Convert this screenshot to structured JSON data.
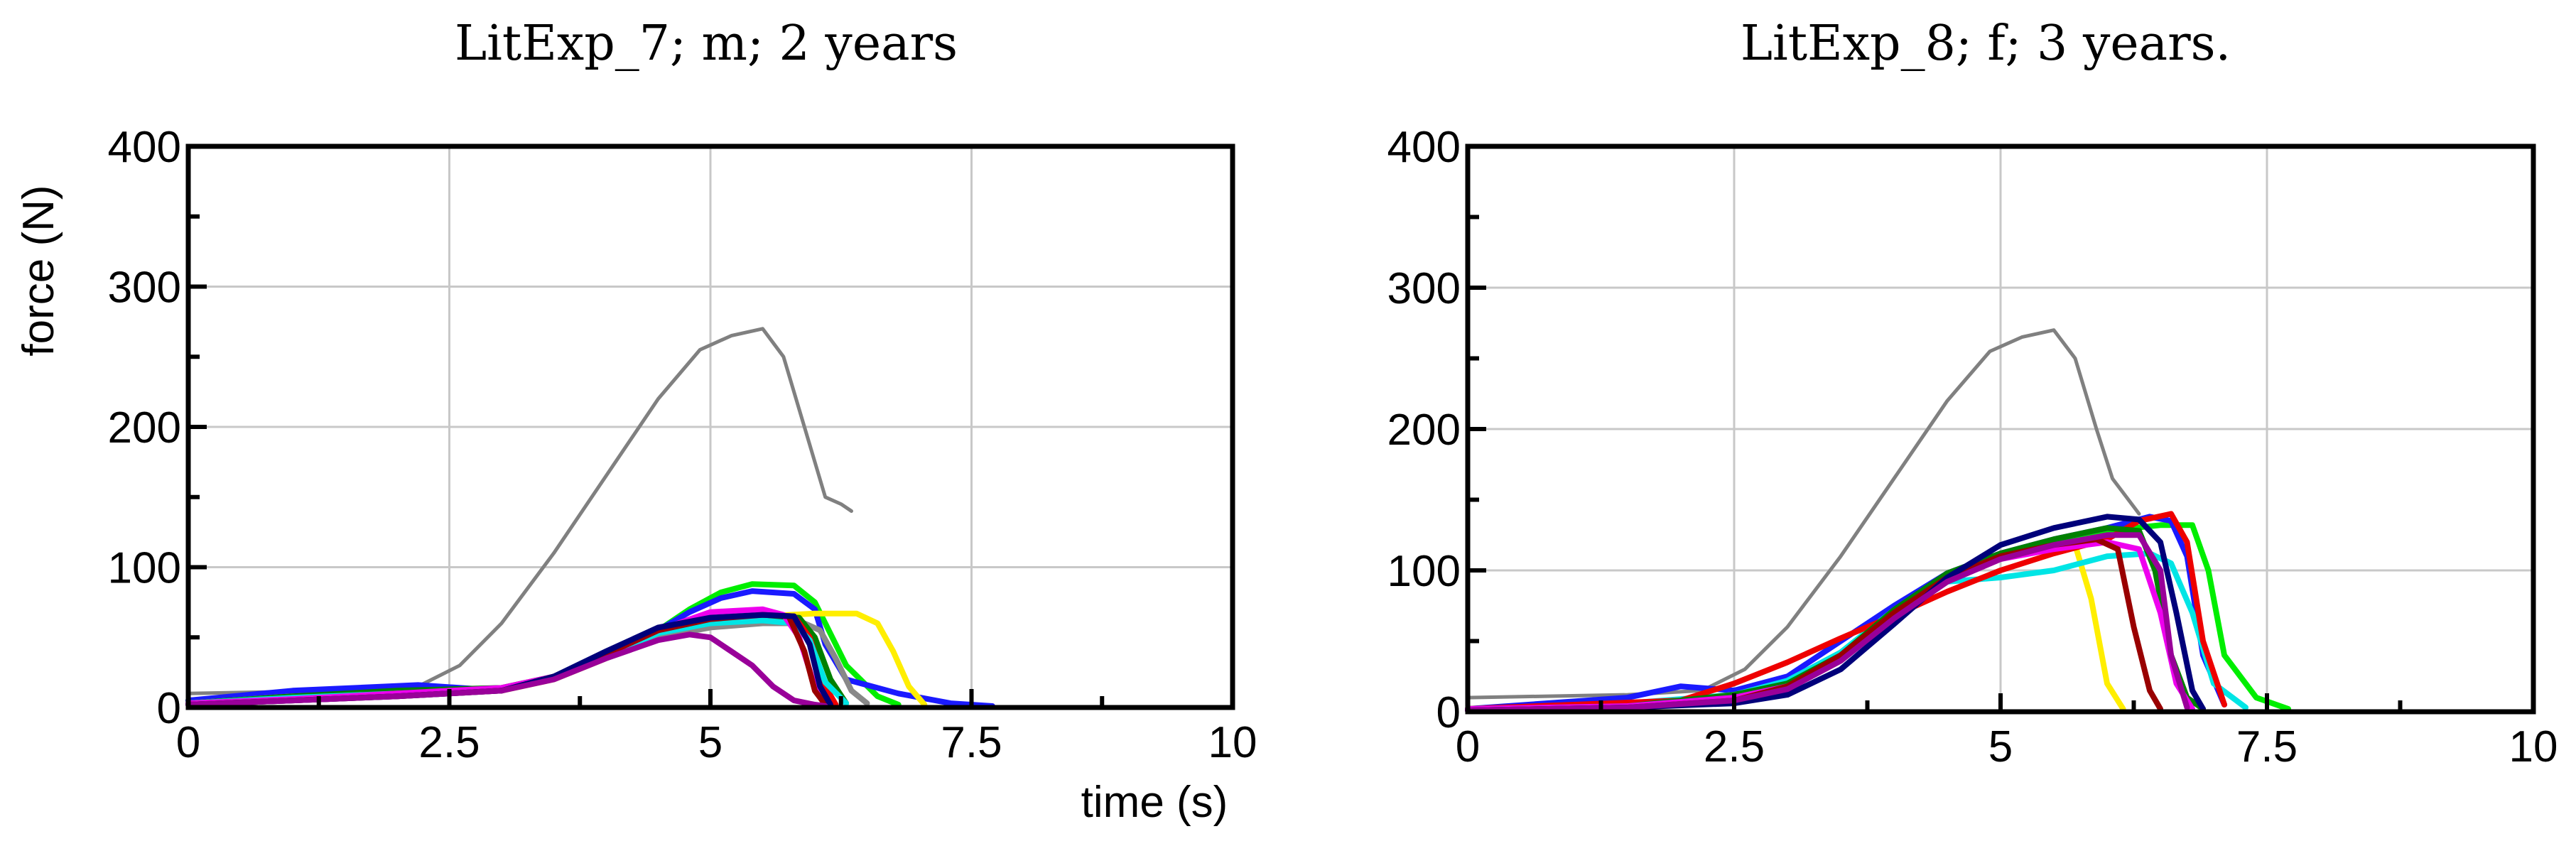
{
  "chart_data": [
    {
      "type": "line",
      "title": "LitExp_7; m; 2 years",
      "xlabel": "time (s)",
      "ylabel": "force (N)",
      "xlim": [
        0,
        10
      ],
      "ylim": [
        0,
        400
      ],
      "x_ticks": [
        0,
        2.5,
        5,
        7.5,
        10
      ],
      "x_tick_labels": [
        "0",
        "2.5",
        "5",
        "7.5",
        "10"
      ],
      "y_ticks": [
        0,
        100,
        200,
        300,
        400
      ],
      "y_tick_labels": [
        "0",
        "100",
        "200",
        "300",
        "400"
      ],
      "grid": true,
      "series": [
        {
          "color": "#808080",
          "thin": true,
          "x": [
            0,
            1.5,
            2.2,
            2.6,
            3.0,
            3.5,
            4.0,
            4.5,
            4.9,
            5.2,
            5.5,
            5.7,
            5.9,
            6.1,
            6.25,
            6.35
          ],
          "y": [
            10,
            12,
            15,
            30,
            60,
            110,
            165,
            220,
            255,
            265,
            270,
            250,
            200,
            150,
            145,
            140
          ]
        },
        {
          "color": "#00ee00",
          "x": [
            0,
            1,
            2,
            3,
            3.5,
            4,
            4.5,
            4.8,
            5.1,
            5.4,
            5.8,
            6.0,
            6.1,
            6.3,
            6.6,
            6.8
          ],
          "y": [
            5,
            10,
            14,
            12,
            22,
            38,
            55,
            70,
            82,
            88,
            87,
            75,
            60,
            30,
            8,
            2
          ]
        },
        {
          "color": "#1a1aff",
          "x": [
            0,
            1,
            2.2,
            3,
            3.5,
            4,
            4.5,
            4.8,
            5.1,
            5.4,
            5.8,
            6.0,
            6.1,
            6.3,
            6.8,
            7.3,
            7.7
          ],
          "y": [
            5,
            12,
            16,
            12,
            22,
            38,
            55,
            68,
            78,
            83,
            81,
            70,
            45,
            20,
            10,
            3,
            1
          ]
        },
        {
          "color": "#ffee00",
          "x": [
            0,
            1,
            2,
            3,
            3.5,
            4,
            4.5,
            5,
            5.5,
            6.0,
            6.4,
            6.6,
            6.75,
            6.9,
            7.05
          ],
          "y": [
            3,
            8,
            10,
            12,
            20,
            35,
            52,
            60,
            65,
            67,
            67,
            60,
            40,
            15,
            2
          ]
        },
        {
          "color": "#888888",
          "x": [
            0,
            1,
            2,
            3,
            3.5,
            4,
            4.5,
            5,
            5.5,
            5.9,
            6.05,
            6.2,
            6.35,
            6.5
          ],
          "y": [
            3,
            8,
            11,
            14,
            22,
            36,
            50,
            57,
            60,
            60,
            55,
            35,
            12,
            3
          ]
        },
        {
          "color": "#008000",
          "x": [
            0,
            1,
            2,
            3,
            3.5,
            4,
            4.5,
            5,
            5.5,
            5.85,
            6.0,
            6.15,
            6.3
          ],
          "y": [
            3,
            8,
            12,
            14,
            22,
            38,
            55,
            62,
            65,
            64,
            50,
            20,
            3
          ]
        },
        {
          "color": "#ee0000",
          "x": [
            0,
            1,
            2,
            3,
            3.5,
            4,
            4.5,
            5,
            5.5,
            5.8,
            5.95,
            6.1,
            6.2
          ],
          "y": [
            3,
            6,
            10,
            12,
            22,
            38,
            55,
            62,
            66,
            65,
            50,
            15,
            2
          ]
        },
        {
          "color": "#00e5e5",
          "x": [
            0,
            1,
            2,
            3,
            3.5,
            4,
            4.5,
            5,
            5.5,
            5.8,
            5.95,
            6.1,
            6.3
          ],
          "y": [
            3,
            7,
            10,
            13,
            22,
            37,
            53,
            60,
            62,
            60,
            48,
            18,
            3
          ]
        },
        {
          "color": "#ee00ee",
          "x": [
            0,
            1,
            2,
            3,
            3.5,
            4,
            4.5,
            5,
            5.5,
            5.7,
            5.85,
            6.0,
            6.1
          ],
          "y": [
            3,
            6,
            10,
            14,
            22,
            38,
            55,
            68,
            70,
            66,
            50,
            15,
            2
          ]
        },
        {
          "color": "#990000",
          "x": [
            0,
            1,
            2,
            3,
            3.5,
            4,
            4.5,
            5,
            5.5,
            5.75,
            5.9,
            6.0,
            6.1
          ],
          "y": [
            2,
            5,
            8,
            12,
            22,
            38,
            55,
            63,
            66,
            65,
            40,
            12,
            2
          ]
        },
        {
          "color": "#00007a",
          "x": [
            0,
            1,
            2,
            3,
            3.5,
            4,
            4.5,
            5,
            5.5,
            5.8,
            5.95,
            6.05,
            6.15
          ],
          "y": [
            2,
            5,
            8,
            12,
            22,
            40,
            57,
            64,
            66,
            65,
            45,
            15,
            2
          ]
        },
        {
          "color": "#990099",
          "x": [
            0,
            1,
            2,
            3,
            3.5,
            4,
            4.5,
            4.8,
            5.0,
            5.2,
            5.4,
            5.6,
            5.8,
            6.0,
            6.1
          ],
          "y": [
            2,
            5,
            8,
            12,
            20,
            35,
            48,
            52,
            50,
            40,
            30,
            15,
            5,
            2,
            1
          ]
        }
      ]
    },
    {
      "type": "line",
      "title": "LitExp_8; f; 3 years.",
      "xlabel": "",
      "ylabel": "",
      "xlim": [
        0,
        10
      ],
      "ylim": [
        0,
        400
      ],
      "x_ticks": [
        0,
        2.5,
        5,
        7.5,
        10
      ],
      "x_tick_labels": [
        "0",
        "2.5",
        "5",
        "7.5",
        "10"
      ],
      "y_ticks": [
        0,
        100,
        200,
        300,
        400
      ],
      "y_tick_labels": [
        "0",
        "100",
        "200",
        "300",
        "400"
      ],
      "grid": true,
      "series": [
        {
          "color": "#808080",
          "thin": true,
          "x": [
            0,
            1.5,
            2.2,
            2.6,
            3.0,
            3.5,
            4.0,
            4.5,
            4.9,
            5.2,
            5.5,
            5.7,
            5.9,
            6.05,
            6.2,
            6.3
          ],
          "y": [
            10,
            12,
            15,
            30,
            60,
            110,
            165,
            220,
            255,
            265,
            270,
            250,
            200,
            165,
            150,
            140
          ]
        },
        {
          "color": "#00ee00",
          "x": [
            0,
            1.5,
            2.5,
            3,
            3.5,
            4,
            4.5,
            5,
            5.5,
            6,
            6.5,
            6.8,
            6.95,
            7.1,
            7.4,
            7.7
          ],
          "y": [
            2,
            5,
            10,
            20,
            40,
            70,
            95,
            110,
            120,
            128,
            132,
            132,
            100,
            40,
            10,
            2
          ]
        },
        {
          "color": "#1a1aff",
          "x": [
            0,
            1.5,
            2.0,
            2.5,
            3,
            3.5,
            4,
            4.5,
            5,
            5.5,
            6,
            6.4,
            6.6,
            6.75,
            6.9,
            7.1
          ],
          "y": [
            2,
            10,
            18,
            15,
            25,
            50,
            75,
            98,
            112,
            122,
            130,
            138,
            135,
            110,
            40,
            5
          ]
        },
        {
          "color": "#ffee00",
          "x": [
            0,
            1.5,
            2.5,
            3,
            3.5,
            4,
            4.5,
            5,
            5.4,
            5.7,
            5.85,
            6.0,
            6.15
          ],
          "y": [
            2,
            5,
            12,
            20,
            40,
            70,
            95,
            110,
            118,
            118,
            80,
            20,
            2
          ]
        },
        {
          "color": "#00e5e5",
          "x": [
            0,
            1.5,
            2.5,
            3,
            3.5,
            4,
            4.5,
            5,
            5.5,
            6,
            6.4,
            6.6,
            6.8,
            7.0,
            7.3
          ],
          "y": [
            2,
            6,
            12,
            22,
            42,
            72,
            92,
            95,
            100,
            110,
            112,
            105,
            70,
            20,
            3
          ]
        },
        {
          "color": "#ee0000",
          "x": [
            0,
            1,
            2,
            2.5,
            3,
            3.5,
            4,
            4.5,
            5,
            5.5,
            6,
            6.3,
            6.6,
            6.75,
            6.9,
            7.1
          ],
          "y": [
            2,
            5,
            8,
            20,
            35,
            52,
            68,
            85,
            100,
            112,
            122,
            135,
            140,
            120,
            50,
            5
          ]
        },
        {
          "color": "#008000",
          "x": [
            0,
            1.5,
            2.5,
            3,
            3.5,
            4,
            4.5,
            5,
            5.5,
            6,
            6.3,
            6.45,
            6.6,
            6.75,
            6.9
          ],
          "y": [
            2,
            4,
            12,
            20,
            40,
            72,
            98,
            112,
            122,
            130,
            128,
            100,
            40,
            10,
            2
          ]
        },
        {
          "color": "#ee00ee",
          "x": [
            0,
            1.5,
            2.5,
            3,
            3.5,
            4,
            4.5,
            5,
            5.5,
            6,
            6.3,
            6.5,
            6.65,
            6.8
          ],
          "y": [
            2,
            4,
            10,
            18,
            38,
            68,
            92,
            108,
            115,
            120,
            115,
            70,
            20,
            2
          ]
        },
        {
          "color": "#990000",
          "x": [
            0,
            1.5,
            2.5,
            3,
            3.5,
            4,
            4.5,
            5,
            5.5,
            5.9,
            6.1,
            6.25,
            6.4,
            6.5
          ],
          "y": [
            1,
            3,
            8,
            18,
            40,
            70,
            95,
            110,
            118,
            122,
            115,
            60,
            15,
            2
          ]
        },
        {
          "color": "#00007a",
          "x": [
            0,
            1.5,
            2.5,
            3,
            3.5,
            4,
            4.5,
            5,
            5.5,
            6,
            6.3,
            6.5,
            6.65,
            6.8,
            6.9
          ],
          "y": [
            1,
            3,
            6,
            12,
            30,
            62,
            95,
            118,
            130,
            138,
            136,
            120,
            70,
            15,
            2
          ]
        },
        {
          "color": "#990099",
          "x": [
            0,
            1.5,
            2.5,
            3,
            3.5,
            4,
            4.5,
            5,
            5.5,
            6,
            6.3,
            6.5,
            6.6,
            6.75
          ],
          "y": [
            1,
            3,
            8,
            16,
            36,
            66,
            92,
            108,
            118,
            125,
            125,
            100,
            40,
            3
          ]
        }
      ]
    }
  ]
}
